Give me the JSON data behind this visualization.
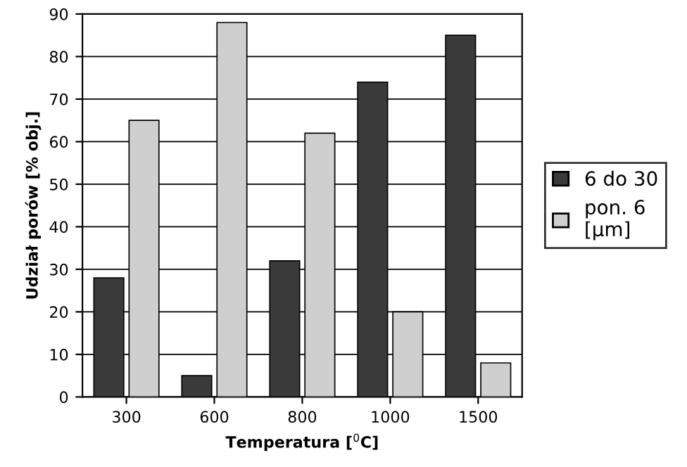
{
  "chart_data": {
    "type": "bar",
    "xlabel": "Temperatura [$^{0}$C]",
    "ylabel": "Udział porów [% obj.]",
    "categories": [
      "300",
      "600",
      "800",
      "1000",
      "1500"
    ],
    "series": [
      {
        "name": "6 do 30",
        "color": "#3a3a3a",
        "values": [
          28,
          5,
          32,
          74,
          85
        ]
      },
      {
        "name": "pon. 6\n[µm]",
        "color": "#cfcfcf",
        "values": [
          65,
          88,
          62,
          20,
          8
        ]
      }
    ],
    "ylim": [
      0,
      90
    ],
    "yticks": [
      0,
      10,
      20,
      30,
      40,
      50,
      60,
      70,
      80,
      90
    ],
    "grid": "y",
    "legend": "right"
  }
}
